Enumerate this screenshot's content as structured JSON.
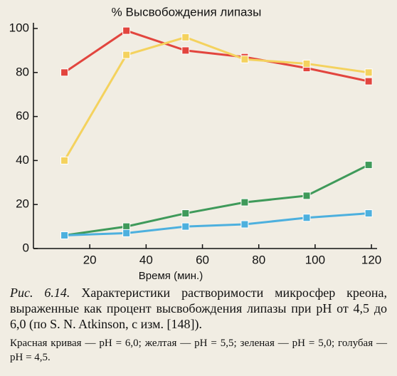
{
  "chart_data": {
    "type": "line",
    "title": "% Высвобождения липазы",
    "xlabel": "Время (мин.)",
    "xlim": [
      0,
      122
    ],
    "xticks": [
      20,
      40,
      60,
      80,
      100,
      120
    ],
    "ylim": [
      0,
      100
    ],
    "yticks": [
      0,
      20,
      40,
      60,
      80,
      100
    ],
    "x": [
      11,
      33,
      54,
      75,
      97,
      119
    ],
    "series": [
      {
        "color": "#e2453e",
        "values": [
          80,
          99,
          90,
          87,
          82,
          76
        ]
      },
      {
        "color": "#f4d25e",
        "values": [
          40,
          88,
          96,
          86,
          84,
          80
        ]
      },
      {
        "color": "#3f9a5a",
        "values": [
          6,
          10,
          16,
          21,
          24,
          38
        ]
      },
      {
        "color": "#4db0de",
        "values": [
          6,
          7,
          10,
          11,
          14,
          16
        ]
      }
    ]
  },
  "caption": {
    "label": "Рис. 6.14.",
    "text": "Характеристики растворимости микросфер креона, выраженные как процент высвобождения липазы при pH от 4,5 до 6,0 (по S. N. Atkinson, с изм. [148]).",
    "note": "Красная кривая — pH = 6,0; желтая — pH = 5,5; зеленая — pH = 5,0; голубая — pH = 4,5."
  }
}
